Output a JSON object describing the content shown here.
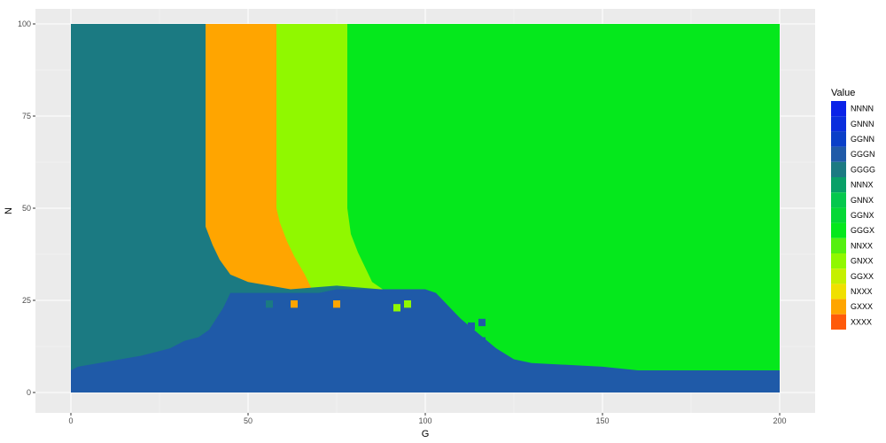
{
  "chart_data": {
    "type": "heatmap",
    "xlabel": "G",
    "ylabel": "N",
    "xlim": [
      0,
      200
    ],
    "ylim": [
      0,
      100
    ],
    "x_ticks": [
      0,
      50,
      100,
      150,
      200
    ],
    "y_ticks": [
      0,
      25,
      50,
      75,
      100
    ],
    "x_tick_labels": [
      "0",
      "50",
      "100",
      "150",
      "200"
    ],
    "y_tick_labels": [
      "0",
      "25",
      "50",
      "75",
      "100"
    ],
    "grid": true,
    "legend_position": "right",
    "legend_title": "Value",
    "categories": [
      {
        "name": "NNNN",
        "color": "#0A22E8"
      },
      {
        "name": "GNNN",
        "color": "#0A2EDD"
      },
      {
        "name": "GGNN",
        "color": "#0A3FC8"
      },
      {
        "name": "GGGN",
        "color": "#1F5AA8"
      },
      {
        "name": "GGGG",
        "color": "#1B7A82"
      },
      {
        "name": "NNNX",
        "color": "#08A068"
      },
      {
        "name": "GNNX",
        "color": "#05C84D"
      },
      {
        "name": "GGNX",
        "color": "#05D836"
      },
      {
        "name": "GGGX",
        "color": "#05E81C"
      },
      {
        "name": "NNXX",
        "color": "#55F010"
      },
      {
        "name": "GNXX",
        "color": "#90F800"
      },
      {
        "name": "GGXX",
        "color": "#C5F000"
      },
      {
        "name": "NXXX",
        "color": "#F0E000"
      },
      {
        "name": "GXXX",
        "color": "#FFA500"
      },
      {
        "name": "XXXX",
        "color": "#FF5A0A"
      }
    ],
    "region_boundaries": {
      "GGGN_top": [
        [
          0,
          6
        ],
        [
          2,
          7
        ],
        [
          8,
          8
        ],
        [
          14,
          9
        ],
        [
          20,
          10
        ],
        [
          24,
          11
        ],
        [
          28,
          12
        ],
        [
          32,
          14
        ],
        [
          36,
          15
        ],
        [
          39,
          17
        ],
        [
          41,
          20
        ],
        [
          43,
          23
        ],
        [
          45,
          27
        ],
        [
          60,
          27
        ],
        [
          65,
          27
        ],
        [
          70,
          27
        ],
        [
          75,
          28
        ],
        [
          80,
          28
        ],
        [
          90,
          28
        ],
        [
          100,
          28
        ],
        [
          103,
          27
        ],
        [
          106,
          24
        ],
        [
          110,
          20
        ],
        [
          115,
          16
        ],
        [
          120,
          12
        ],
        [
          125,
          9
        ],
        [
          130,
          8
        ],
        [
          150,
          7
        ],
        [
          160,
          6
        ],
        [
          200,
          6
        ]
      ],
      "GGGG_right": [
        [
          100,
          0
        ],
        [
          100,
          27
        ],
        [
          75,
          29
        ],
        [
          62,
          28
        ],
        [
          50,
          30
        ],
        [
          45,
          32
        ],
        [
          42,
          36
        ],
        [
          40,
          40
        ],
        [
          38,
          45
        ],
        [
          38,
          50
        ],
        [
          38,
          60
        ],
        [
          38,
          100
        ]
      ],
      "GXXX_right": [
        [
          58,
          100
        ],
        [
          58,
          50
        ],
        [
          59,
          46
        ],
        [
          61,
          41
        ],
        [
          63,
          37
        ],
        [
          66,
          32
        ],
        [
          68,
          28
        ]
      ],
      "GNXX_right": [
        [
          78,
          100
        ],
        [
          78,
          50
        ],
        [
          79,
          43
        ],
        [
          81,
          38
        ],
        [
          83,
          34
        ],
        [
          85,
          30
        ],
        [
          88,
          28
        ]
      ]
    },
    "isolated_cells": [
      {
        "x": 56,
        "y": 24,
        "value": "GGGG"
      },
      {
        "x": 63,
        "y": 24,
        "value": "GXXX"
      },
      {
        "x": 75,
        "y": 24,
        "value": "GXXX"
      },
      {
        "x": 92,
        "y": 23,
        "value": "GNXX"
      },
      {
        "x": 95,
        "y": 24,
        "value": "GNXX"
      },
      {
        "x": 113,
        "y": 18,
        "value": "GGGN"
      },
      {
        "x": 116,
        "y": 19,
        "value": "GGGN"
      },
      {
        "x": 116,
        "y": 14,
        "value": "GGGN"
      }
    ]
  }
}
